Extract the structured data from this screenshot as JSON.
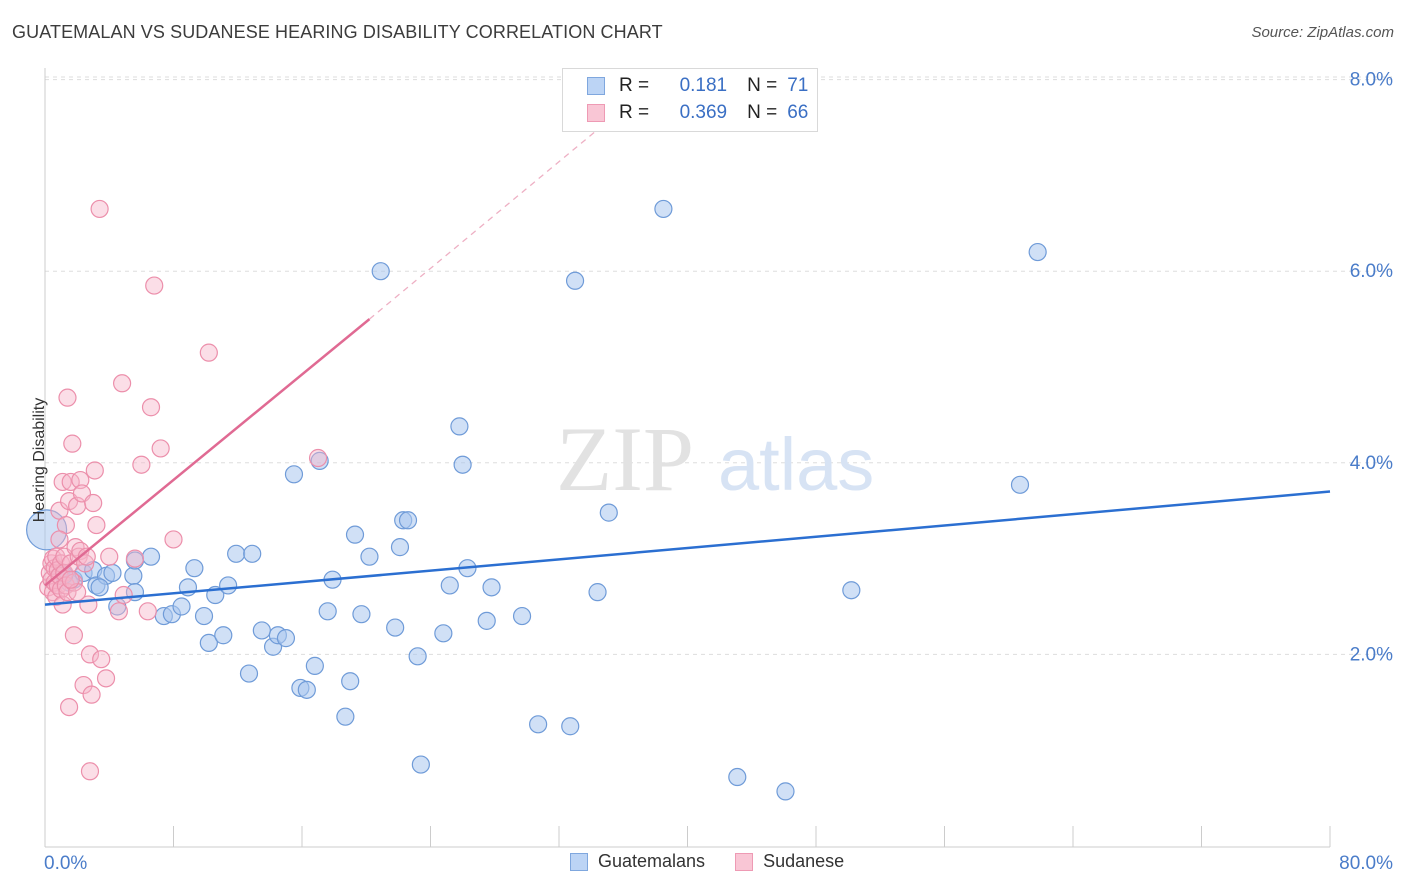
{
  "title": "GUATEMALAN VS SUDANESE HEARING DISABILITY CORRELATION CHART",
  "source": "Source: ZipAtlas.com",
  "legend": {
    "rows": [
      {
        "r_label": "R =",
        "r_value": "0.181",
        "n_label": "N =",
        "n_value": "71"
      },
      {
        "r_label": "R =",
        "r_value": "0.369",
        "n_label": "N =",
        "n_value": "66"
      }
    ],
    "bottom": [
      "Guatemalans",
      "Sudanese"
    ]
  },
  "colors": {
    "blue_fill": "#a9c6ef",
    "blue_stroke": "#6f9bd8",
    "blue_line": "#2b6fd1",
    "pink_fill": "#f7b6c9",
    "pink_stroke": "#ec8fab",
    "pink_line": "#e06a93",
    "tick_label": "#4a7cc9",
    "grid": "#dddddd"
  },
  "watermark": {
    "zip": "ZIP",
    "atlas": "atlas"
  },
  "chart_data": {
    "type": "scatter",
    "title": "GUATEMALAN VS SUDANESE HEARING DISABILITY CORRELATION CHART",
    "xlabel": "",
    "ylabel": "Hearing Disability",
    "xlim": [
      0,
      80
    ],
    "ylim": [
      0,
      8.3
    ],
    "x_tick_labels": [
      "0.0%",
      "80.0%"
    ],
    "y_ticks": [
      2,
      4,
      6,
      8
    ],
    "y_tick_labels": [
      "2.0%",
      "4.0%",
      "6.0%",
      "8.0%"
    ],
    "grid": true,
    "legend_position": "top-center",
    "series": [
      {
        "name": "Guatemalans",
        "r": 0.181,
        "n": 71,
        "trend": {
          "x": [
            0,
            80
          ],
          "y": [
            2.52,
            3.7
          ]
        },
        "points": [
          [
            0.1,
            3.3
          ],
          [
            1.0,
            2.85
          ],
          [
            1.5,
            2.75
          ],
          [
            1.8,
            2.78
          ],
          [
            2.4,
            2.85
          ],
          [
            3.0,
            2.88
          ],
          [
            3.2,
            2.72
          ],
          [
            3.8,
            2.82
          ],
          [
            4.2,
            2.85
          ],
          [
            4.5,
            2.5
          ],
          [
            5.5,
            2.82
          ],
          [
            5.6,
            2.98
          ],
          [
            5.6,
            2.65
          ],
          [
            6.6,
            3.02
          ],
          [
            7.4,
            2.4
          ],
          [
            7.9,
            2.42
          ],
          [
            8.5,
            2.5
          ],
          [
            8.9,
            2.7
          ],
          [
            9.3,
            2.9
          ],
          [
            9.9,
            2.4
          ],
          [
            10.2,
            2.12
          ],
          [
            10.6,
            2.62
          ],
          [
            11.1,
            2.2
          ],
          [
            11.4,
            2.72
          ],
          [
            11.9,
            3.05
          ],
          [
            12.7,
            1.8
          ],
          [
            12.9,
            3.05
          ],
          [
            13.5,
            2.25
          ],
          [
            14.2,
            2.08
          ],
          [
            14.5,
            2.2
          ],
          [
            15.0,
            2.17
          ],
          [
            15.5,
            3.88
          ],
          [
            15.9,
            1.65
          ],
          [
            16.3,
            1.63
          ],
          [
            16.8,
            1.88
          ],
          [
            17.1,
            4.02
          ],
          [
            17.6,
            2.45
          ],
          [
            17.9,
            2.78
          ],
          [
            18.7,
            1.35
          ],
          [
            19.0,
            1.72
          ],
          [
            19.3,
            3.25
          ],
          [
            19.7,
            2.42
          ],
          [
            20.2,
            3.02
          ],
          [
            20.9,
            6.0
          ],
          [
            21.8,
            2.28
          ],
          [
            22.1,
            3.12
          ],
          [
            22.3,
            3.4
          ],
          [
            22.6,
            3.4
          ],
          [
            23.2,
            1.98
          ],
          [
            23.4,
            0.85
          ],
          [
            24.8,
            2.22
          ],
          [
            25.2,
            2.72
          ],
          [
            25.8,
            4.38
          ],
          [
            26.0,
            3.98
          ],
          [
            26.3,
            2.9
          ],
          [
            27.5,
            2.35
          ],
          [
            27.8,
            2.7
          ],
          [
            29.7,
            2.4
          ],
          [
            30.7,
            1.27
          ],
          [
            32.7,
            1.25
          ],
          [
            33.0,
            5.9
          ],
          [
            34.4,
            2.65
          ],
          [
            35.1,
            3.48
          ],
          [
            38.5,
            6.65
          ],
          [
            43.1,
            0.72
          ],
          [
            46.1,
            0.57
          ],
          [
            50.2,
            2.67
          ],
          [
            60.7,
            3.77
          ],
          [
            61.8,
            6.2
          ],
          [
            1.2,
            2.83
          ],
          [
            3.4,
            2.7
          ]
        ]
      },
      {
        "name": "Sudanese",
        "r": 0.369,
        "n": 66,
        "trend": {
          "x": [
            0,
            20.2
          ],
          "y": [
            2.72,
            5.5
          ]
        },
        "trend_ext": {
          "x": [
            20.2,
            36.0
          ],
          "y": [
            5.5,
            7.7
          ]
        },
        "points": [
          [
            0.2,
            2.7
          ],
          [
            0.3,
            2.85
          ],
          [
            0.4,
            2.95
          ],
          [
            0.4,
            2.78
          ],
          [
            0.5,
            3.0
          ],
          [
            0.5,
            2.65
          ],
          [
            0.6,
            2.9
          ],
          [
            0.6,
            2.75
          ],
          [
            0.7,
            3.02
          ],
          [
            0.7,
            2.6
          ],
          [
            0.8,
            2.88
          ],
          [
            0.8,
            2.72
          ],
          [
            0.9,
            3.5
          ],
          [
            0.9,
            2.82
          ],
          [
            1.0,
            2.95
          ],
          [
            1.0,
            2.68
          ],
          [
            1.1,
            3.8
          ],
          [
            1.1,
            2.52
          ],
          [
            1.2,
            3.02
          ],
          [
            1.2,
            2.85
          ],
          [
            1.3,
            3.35
          ],
          [
            1.3,
            2.72
          ],
          [
            1.4,
            4.68
          ],
          [
            1.4,
            2.65
          ],
          [
            1.5,
            1.45
          ],
          [
            1.5,
            3.6
          ],
          [
            1.6,
            2.95
          ],
          [
            1.6,
            3.8
          ],
          [
            1.7,
            4.2
          ],
          [
            1.8,
            2.75
          ],
          [
            1.8,
            2.2
          ],
          [
            1.9,
            3.12
          ],
          [
            2.0,
            3.55
          ],
          [
            2.0,
            2.65
          ],
          [
            2.1,
            3.02
          ],
          [
            2.2,
            3.82
          ],
          [
            2.2,
            3.08
          ],
          [
            2.3,
            3.68
          ],
          [
            2.4,
            1.68
          ],
          [
            2.5,
            2.95
          ],
          [
            2.6,
            3.02
          ],
          [
            2.7,
            2.52
          ],
          [
            2.8,
            2.0
          ],
          [
            2.8,
            0.78
          ],
          [
            2.9,
            1.58
          ],
          [
            3.0,
            3.58
          ],
          [
            3.1,
            3.92
          ],
          [
            3.2,
            3.35
          ],
          [
            3.4,
            6.65
          ],
          [
            3.5,
            1.95
          ],
          [
            3.8,
            1.75
          ],
          [
            4.0,
            3.02
          ],
          [
            4.6,
            2.45
          ],
          [
            4.9,
            2.62
          ],
          [
            5.6,
            3.0
          ],
          [
            6.0,
            3.98
          ],
          [
            6.4,
            2.45
          ],
          [
            6.6,
            4.58
          ],
          [
            6.8,
            5.85
          ],
          [
            7.2,
            4.15
          ],
          [
            8.0,
            3.2
          ],
          [
            10.2,
            5.15
          ],
          [
            17.0,
            4.05
          ],
          [
            4.8,
            4.83
          ],
          [
            1.6,
            2.78
          ],
          [
            0.9,
            3.2
          ]
        ]
      }
    ]
  }
}
